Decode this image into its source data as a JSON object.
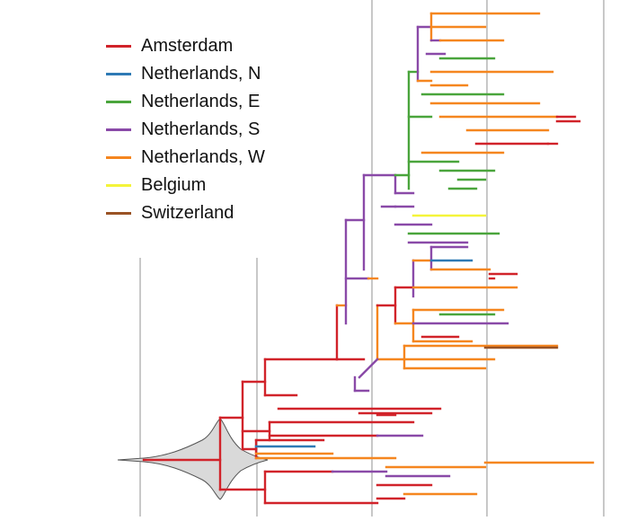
{
  "legend": [
    {
      "label": "Amsterdam",
      "color": "#d1232a"
    },
    {
      "label": "Netherlands, N",
      "color": "#2e7ab5"
    },
    {
      "label": "Netherlands, E",
      "color": "#4aa53c"
    },
    {
      "label": "Netherlands, S",
      "color": "#8a4aa8"
    },
    {
      "label": "Netherlands, W",
      "color": "#f5861f"
    },
    {
      "label": "Belgium",
      "color": "#f4f43a"
    },
    {
      "label": "Switzerland",
      "color": "#9a5325"
    }
  ],
  "colors": {
    "gridline": "#c8c8c8",
    "root_density": "#d9d9d9"
  }
}
